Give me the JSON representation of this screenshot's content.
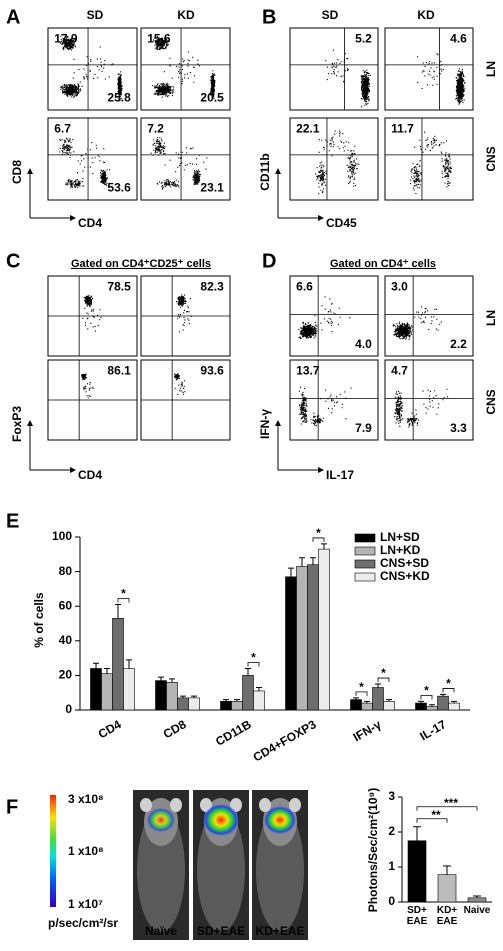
{
  "panels": {
    "panel_a": {
      "label": "A",
      "columns": [
        "SD",
        "KD"
      ],
      "x_axis": "CD4",
      "y_axis": "CD8",
      "plots": [
        {
          "upper_left": "17.9",
          "lower_right": "25.8"
        },
        {
          "upper_left": "15.6",
          "lower_right": "20.5"
        },
        {
          "upper_left": "6.7",
          "lower_right": "53.6"
        },
        {
          "upper_left": "7.2",
          "lower_right": "23.1"
        }
      ]
    },
    "panel_b": {
      "label": "B",
      "columns": [
        "SD",
        "KD"
      ],
      "rows": [
        "LN",
        "CNS"
      ],
      "x_axis": "CD45",
      "y_axis": "CD11b",
      "plots": [
        {
          "upper_right": "5.2"
        },
        {
          "upper_right": "4.6"
        },
        {
          "upper_left": "22.1"
        },
        {
          "upper_left": "11.7"
        }
      ]
    },
    "panel_c": {
      "label": "C",
      "header": "Gated on CD4⁺CD25⁺ cells",
      "x_axis": "CD4",
      "y_axis": "FoxP3",
      "plots": [
        {
          "upper_right": "78.5"
        },
        {
          "upper_right": "82.3"
        },
        {
          "upper_right": "86.1"
        },
        {
          "upper_right": "93.6"
        }
      ]
    },
    "panel_d": {
      "label": "D",
      "header": "Gated on CD4⁺ cells",
      "rows": [
        "LN",
        "CNS"
      ],
      "x_axis": "IL-17",
      "y_axis": "IFN-γ",
      "plots": [
        {
          "upper_left": "6.6",
          "lower_right": "4.0"
        },
        {
          "upper_left": "3.0",
          "lower_right": "2.2"
        },
        {
          "upper_left": "13.7",
          "lower_right": "7.9"
        },
        {
          "upper_left": "4.7",
          "lower_right": "3.3"
        }
      ]
    },
    "panel_f": {
      "label": "F",
      "images": [
        "Naïve",
        "SD+EAE",
        "KD+EAE"
      ],
      "scale_ticks": [
        "3 x10⁸",
        "1 x10⁸",
        "1 x10⁷"
      ],
      "scale_unit": "p/sec/cm²/sr"
    }
  },
  "chart_data": [
    {
      "type": "bar",
      "panel_label": "E",
      "y_label": "% of cells",
      "categories": [
        "CD4",
        "CD8",
        "CD11B",
        "CD4+FOXP3",
        "IFN-γ",
        "IL-17"
      ],
      "ylim": [
        0,
        100
      ],
      "yticks": [
        0,
        20,
        40,
        60,
        80,
        100
      ],
      "series": [
        {
          "name": "LN+SD",
          "color": "#000000",
          "values": [
            24,
            17,
            5,
            77,
            6,
            4
          ],
          "errors": [
            3,
            2,
            1,
            5,
            1,
            1
          ]
        },
        {
          "name": "LN+KD",
          "color": "#b4b4b4",
          "values": [
            21,
            16,
            5,
            83,
            4,
            2
          ],
          "errors": [
            3,
            2,
            1,
            5,
            1,
            1
          ]
        },
        {
          "name": "CNS+SD",
          "color": "#6e6e6e",
          "values": [
            53,
            7,
            20,
            84,
            13,
            8
          ],
          "errors": [
            8,
            1,
            4,
            4,
            2,
            1
          ]
        },
        {
          "name": "CNS+KD",
          "color": "#ececec",
          "values": [
            24,
            7,
            11,
            93,
            5,
            4
          ],
          "errors": [
            5,
            1,
            2,
            3,
            1,
            1
          ]
        }
      ],
      "significance": [
        {
          "label": "*",
          "category": 0,
          "pair": [
            2,
            3
          ]
        },
        {
          "label": "*",
          "category": 2,
          "pair": [
            2,
            3
          ]
        },
        {
          "label": "*",
          "category": 3,
          "pair": [
            2,
            3
          ]
        },
        {
          "label": "*",
          "category": 4,
          "pair": [
            0,
            1
          ]
        },
        {
          "label": "*",
          "category": 4,
          "pair": [
            2,
            3
          ]
        },
        {
          "label": "*",
          "category": 5,
          "pair": [
            0,
            1
          ]
        },
        {
          "label": "*",
          "category": 5,
          "pair": [
            2,
            3
          ]
        }
      ]
    },
    {
      "type": "bar",
      "y_label": "Photons/Sec/cm²(10⁹)",
      "categories": [
        "SD+ EAE",
        "KD+ EAE",
        "Naive"
      ],
      "ylim": [
        0,
        3
      ],
      "yticks": [
        0,
        1,
        2,
        3
      ],
      "colors": [
        "#000000",
        "#bcbcbc",
        "#8c8c8c"
      ],
      "values": [
        1.75,
        0.78,
        0.12
      ],
      "errors": [
        0.4,
        0.25,
        0.05
      ],
      "significance": [
        {
          "label": "**",
          "pair": [
            0,
            1
          ]
        },
        {
          "label": "***",
          "pair": [
            0,
            2
          ]
        }
      ]
    }
  ]
}
